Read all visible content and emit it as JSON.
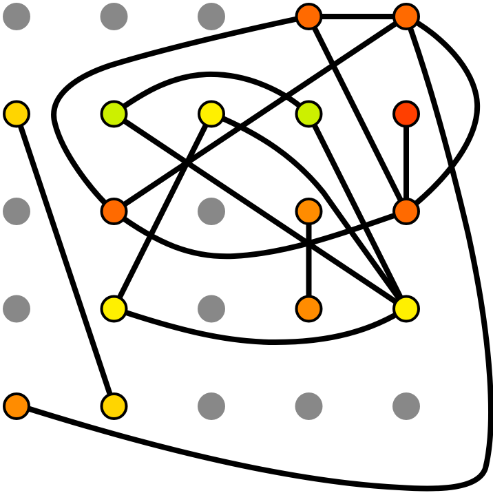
{
  "diagram": {
    "type": "graph",
    "grid": {
      "cols": 5,
      "rows": 5,
      "empty_color": "#888888"
    },
    "nodes": [
      {
        "id": "r0c3",
        "row": 0,
        "col": 3,
        "color": "#ff6a00"
      },
      {
        "id": "r0c4",
        "row": 0,
        "col": 4,
        "color": "#ff6a00"
      },
      {
        "id": "r1c0",
        "row": 1,
        "col": 0,
        "color": "#ffd500"
      },
      {
        "id": "r1c1",
        "row": 1,
        "col": 1,
        "color": "#ccf000"
      },
      {
        "id": "r1c2",
        "row": 1,
        "col": 2,
        "color": "#fff000"
      },
      {
        "id": "r1c3",
        "row": 1,
        "col": 3,
        "color": "#ccf000"
      },
      {
        "id": "r1c4",
        "row": 1,
        "col": 4,
        "color": "#ff3f00"
      },
      {
        "id": "r2c1",
        "row": 2,
        "col": 1,
        "color": "#ff6a00"
      },
      {
        "id": "r2c3",
        "row": 2,
        "col": 3,
        "color": "#ff8c00"
      },
      {
        "id": "r2c4",
        "row": 2,
        "col": 4,
        "color": "#ff6a00"
      },
      {
        "id": "r3c1",
        "row": 3,
        "col": 1,
        "color": "#fff000"
      },
      {
        "id": "r3c3",
        "row": 3,
        "col": 3,
        "color": "#ff8c00"
      },
      {
        "id": "r3c4",
        "row": 3,
        "col": 4,
        "color": "#fff000"
      },
      {
        "id": "r4c0",
        "row": 4,
        "col": 0,
        "color": "#ff8c00"
      },
      {
        "id": "r4c1",
        "row": 4,
        "col": 1,
        "color": "#ffd500"
      }
    ],
    "edges": [
      {
        "from": "r0c3",
        "to": "r0c4"
      },
      {
        "from": "r0c3",
        "to": "r2c4"
      },
      {
        "from": "r0c4",
        "to": "r2c1"
      },
      {
        "from": "r0c3",
        "to": "r2c1",
        "routed": true
      },
      {
        "from": "r0c4",
        "to": "r2c4",
        "routed": true
      },
      {
        "from": "r0c4",
        "to": "r4c0",
        "routed": true
      },
      {
        "from": "r1c0",
        "to": "r4c1"
      },
      {
        "from": "r1c1",
        "to": "r1c3",
        "routed": true
      },
      {
        "from": "r1c1",
        "to": "r3c4"
      },
      {
        "from": "r1c2",
        "to": "r3c1"
      },
      {
        "from": "r1c2",
        "to": "r3c4",
        "routed": true
      },
      {
        "from": "r1c3",
        "to": "r3c4"
      },
      {
        "from": "r1c4",
        "to": "r2c4"
      },
      {
        "from": "r2c1",
        "to": "r2c4",
        "routed": true
      },
      {
        "from": "r2c3",
        "to": "r3c3"
      },
      {
        "from": "r3c1",
        "to": "r3c4",
        "routed": true
      }
    ]
  }
}
